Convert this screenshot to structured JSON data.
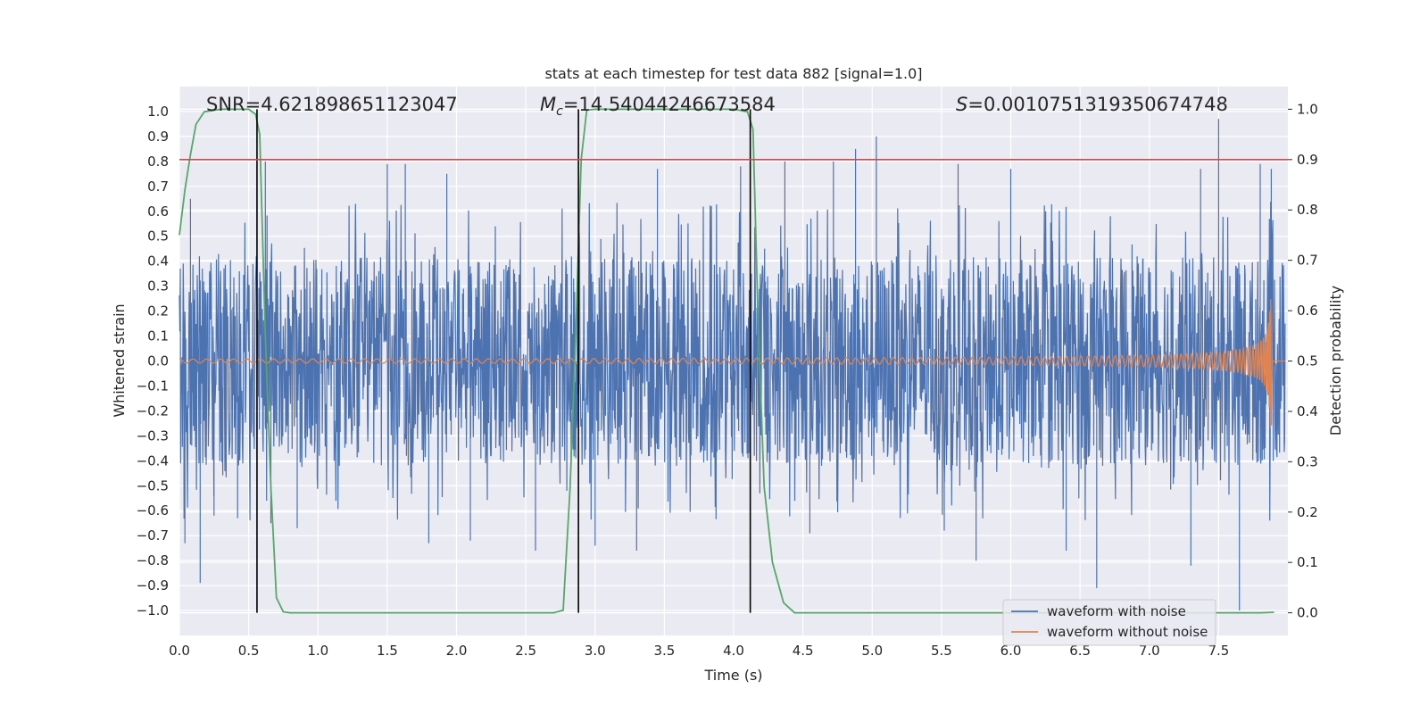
{
  "chart_data": {
    "type": "line",
    "title": "stats at each timestep for test data 882 [signal=1.0]",
    "xlabel": "Time (s)",
    "ylabel_left": "Whitened strain",
    "ylabel_right": "Detection probability",
    "xlim": [
      0.0,
      8.0
    ],
    "ylim_left": [
      -1.1,
      1.1
    ],
    "ylim_right": [
      -0.045,
      1.045
    ],
    "x_ticks": [
      "0.0",
      "0.5",
      "1.0",
      "1.5",
      "2.0",
      "2.5",
      "3.0",
      "3.5",
      "4.0",
      "4.5",
      "5.0",
      "5.5",
      "6.0",
      "6.5",
      "7.0",
      "7.5"
    ],
    "y_ticks_left": [
      "1.0",
      "0.9",
      "0.8",
      "0.7",
      "0.6",
      "0.5",
      "0.4",
      "0.3",
      "0.2",
      "0.1",
      "0.0",
      "−0.1",
      "−0.2",
      "−0.3",
      "−0.4",
      "−0.5",
      "−0.6",
      "−0.7",
      "−0.8",
      "−0.9",
      "−1.0"
    ],
    "y_ticks_right": [
      "1.0",
      "0.9",
      "0.8",
      "0.7",
      "0.6",
      "0.5",
      "0.4",
      "0.3",
      "0.2",
      "0.1",
      "0.0"
    ],
    "grid": true,
    "legend_position": "lower-right",
    "annotations": {
      "snr": "SNR=4.621898651123047",
      "mc_symbol": "M",
      "mc_sub": "c",
      "mc_value": "=14.54044246673584",
      "s_symbol": "S",
      "s_value": "=0.0010751319350674748"
    },
    "threshold_right": 0.9,
    "vertical_lines_x": [
      0.56,
      2.88,
      4.12
    ],
    "series": [
      {
        "name": "waveform with noise",
        "color": "#4c72b0",
        "axis": "left",
        "description_band": [
          -0.42,
          0.42
        ],
        "peaks": [
          [
            0.04,
            -0.73
          ],
          [
            0.08,
            0.65
          ],
          [
            0.15,
            -0.89
          ],
          [
            0.25,
            -0.62
          ],
          [
            0.42,
            -0.63
          ],
          [
            0.62,
            0.8
          ],
          [
            0.66,
            -0.65
          ],
          [
            0.85,
            -0.67
          ],
          [
            1.5,
            0.79
          ],
          [
            1.63,
            0.79
          ],
          [
            1.8,
            -0.73
          ],
          [
            1.93,
            0.75
          ],
          [
            2.1,
            -0.72
          ],
          [
            2.57,
            -0.76
          ],
          [
            2.88,
            0.62
          ],
          [
            3.0,
            -0.74
          ],
          [
            3.3,
            -0.76
          ],
          [
            3.45,
            0.77
          ],
          [
            4.05,
            0.78
          ],
          [
            4.37,
            0.8
          ],
          [
            4.55,
            -0.69
          ],
          [
            4.72,
            0.8
          ],
          [
            4.88,
            0.85
          ],
          [
            5.03,
            0.9
          ],
          [
            5.52,
            -0.68
          ],
          [
            5.62,
            0.79
          ],
          [
            5.75,
            -0.8
          ],
          [
            6.0,
            0.77
          ],
          [
            6.4,
            -0.76
          ],
          [
            6.62,
            -0.91
          ],
          [
            7.37,
            0.77
          ],
          [
            7.5,
            0.97
          ],
          [
            7.65,
            -1.0
          ],
          [
            7.8,
            0.79
          ],
          [
            7.88,
            0.77
          ],
          [
            7.3,
            -0.82
          ]
        ]
      },
      {
        "name": "waveform without noise",
        "color": "#dd8452",
        "axis": "left",
        "amplitude_start": 0.008,
        "amplitude_end": 0.3,
        "merger_time": 7.88
      },
      {
        "name": "detection probability",
        "color": "#55a868",
        "axis": "right",
        "x": [
          0.0,
          0.04,
          0.08,
          0.12,
          0.18,
          0.3,
          0.45,
          0.5,
          0.55,
          0.58,
          0.62,
          0.66,
          0.7,
          0.75,
          0.8,
          1.0,
          1.5,
          2.0,
          2.5,
          2.7,
          2.77,
          2.82,
          2.86,
          2.9,
          2.94,
          3.0,
          3.5,
          4.0,
          4.1,
          4.14,
          4.18,
          4.22,
          4.28,
          4.36,
          4.44,
          5.0,
          6.0,
          7.0,
          7.5,
          7.8,
          7.9
        ],
        "y": [
          0.75,
          0.84,
          0.91,
          0.97,
          0.995,
          1.0,
          1.0,
          1.0,
          0.99,
          0.95,
          0.55,
          0.25,
          0.03,
          0.002,
          0.0,
          0.0,
          0.0,
          0.0,
          0.0,
          0.0,
          0.005,
          0.25,
          0.55,
          0.9,
          0.998,
          1.0,
          1.0,
          1.0,
          0.995,
          0.96,
          0.55,
          0.25,
          0.1,
          0.02,
          0.0,
          0.0,
          0.0,
          0.0,
          0.0,
          0.0,
          0.001
        ]
      }
    ]
  }
}
